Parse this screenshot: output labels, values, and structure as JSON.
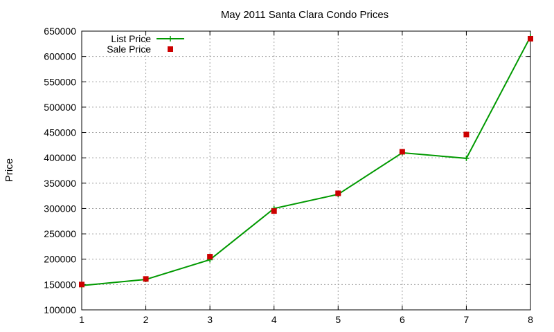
{
  "chart_data": {
    "type": "line",
    "title": "May 2011 Santa Clara Condo Prices",
    "xlabel": "",
    "ylabel": "Price",
    "x": [
      1,
      2,
      3,
      4,
      5,
      6,
      7,
      8
    ],
    "xlim": [
      1,
      8
    ],
    "ylim": [
      100000,
      650000
    ],
    "xticks": [
      1,
      2,
      3,
      4,
      5,
      6,
      7,
      8
    ],
    "yticks": [
      100000,
      150000,
      200000,
      250000,
      300000,
      350000,
      400000,
      450000,
      500000,
      550000,
      600000,
      650000
    ],
    "grid": true,
    "legend_position": "top-left",
    "series": [
      {
        "name": "List Price",
        "style": "line-with-plus",
        "color": "#009900",
        "values": [
          148000,
          160000,
          199000,
          300000,
          328000,
          410000,
          399000,
          639000
        ]
      },
      {
        "name": "Sale Price",
        "style": "square-markers",
        "color": "#cc0000",
        "values": [
          150000,
          161000,
          205000,
          295000,
          330000,
          412000,
          446000,
          635000
        ]
      }
    ]
  }
}
